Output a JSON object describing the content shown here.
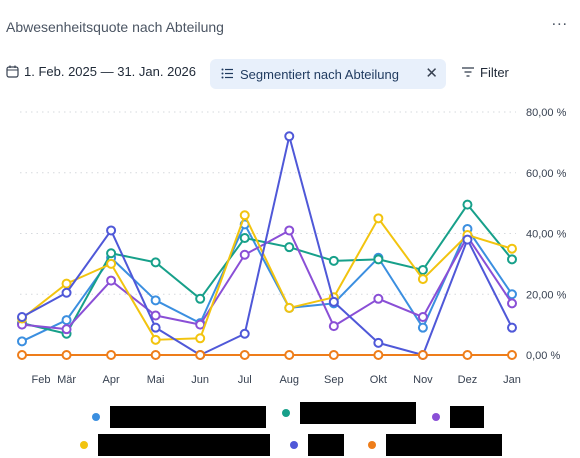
{
  "header": {
    "title": "Abwesenheitsquote nach Abteilung",
    "more_label": "..."
  },
  "toolbar": {
    "date_range": "1. Feb. 2025 — 31. Jan. 2026",
    "segment_chip": "Segmentiert nach Abteilung",
    "filter_label": "Filter",
    "icons": [
      "calendar-icon",
      "list-icon",
      "close-icon",
      "filter-icon"
    ]
  },
  "colors": {
    "blue": "#3b8fe0",
    "teal": "#17a08a",
    "purple": "#8a4fd6",
    "yellow": "#f2c40f",
    "indigo": "#4f58d8",
    "orange": "#ee7d1a",
    "grid": "#d6d9de"
  },
  "chart_data": {
    "type": "line",
    "categories": [
      "Feb",
      "Mär",
      "Apr",
      "Mai",
      "Jun",
      "Jul",
      "Aug",
      "Sep",
      "Okt",
      "Nov",
      "Dez",
      "Jan"
    ],
    "y_ticks": [
      "0,00 %",
      "20,00 %",
      "40,00 %",
      "60,00 %",
      "80,00 %"
    ],
    "ylim": [
      0,
      80
    ],
    "y_axis_position": "right",
    "grid": true,
    "legend_placement": "bottom",
    "series": [
      {
        "color": "#3b8fe0",
        "values": [
          4.5,
          11.5,
          32,
          18,
          10.5,
          43,
          15.5,
          17,
          32,
          9,
          41.5,
          20
        ]
      },
      {
        "color": "#17a08a",
        "values": [
          10.5,
          7,
          33.5,
          30.5,
          18.5,
          38.5,
          35.5,
          31,
          31.5,
          28,
          49.5,
          31.5
        ]
      },
      {
        "color": "#8a4fd6",
        "values": [
          10,
          8.5,
          24.5,
          13,
          10,
          33,
          41,
          9.5,
          18.5,
          12.5,
          39,
          17
        ]
      },
      {
        "color": "#f2c40f",
        "values": [
          12,
          23.5,
          30,
          5,
          5.5,
          46,
          15.5,
          19,
          45,
          25,
          39.5,
          35
        ]
      },
      {
        "color": "#4f58d8",
        "values": [
          12.5,
          20.5,
          41,
          9,
          0,
          7,
          72,
          17.5,
          4,
          0,
          38,
          9
        ]
      },
      {
        "color": "#ee7d1a",
        "values": [
          0,
          0,
          0,
          0,
          0,
          0,
          0,
          0,
          0,
          0,
          0,
          0
        ]
      }
    ]
  }
}
